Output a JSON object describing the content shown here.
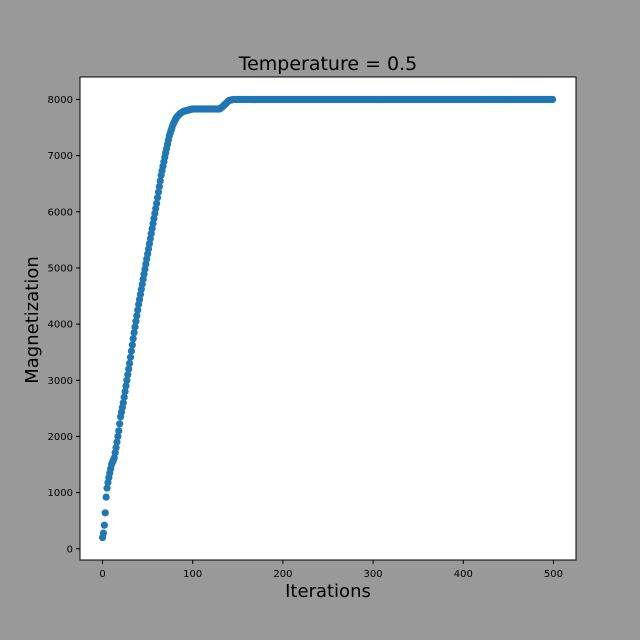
{
  "chart_data": {
    "type": "scatter",
    "title": "Temperature = 0.5",
    "xlabel": "Iterations",
    "ylabel": "Magnetization",
    "xlim": [
      -25,
      525
    ],
    "ylim": [
      -200,
      8400
    ],
    "xticks": [
      0,
      100,
      200,
      300,
      400,
      500
    ],
    "yticks": [
      0,
      1000,
      2000,
      3000,
      4000,
      5000,
      6000,
      7000,
      8000
    ],
    "grid": false,
    "marker_color": "#1f77b4",
    "series": [
      {
        "x_start": 0,
        "x_end": 499,
        "x_step": 1,
        "keypoints": [
          [
            0,
            200
          ],
          [
            1,
            280
          ],
          [
            2,
            420
          ],
          [
            3,
            640
          ],
          [
            4,
            920
          ],
          [
            5,
            1080
          ],
          [
            6,
            1180
          ],
          [
            8,
            1350
          ],
          [
            10,
            1500
          ],
          [
            13,
            1620
          ],
          [
            15,
            1800
          ],
          [
            18,
            2100
          ],
          [
            20,
            2350
          ],
          [
            23,
            2600
          ],
          [
            26,
            2900
          ],
          [
            30,
            3300
          ],
          [
            35,
            3850
          ],
          [
            40,
            4350
          ],
          [
            45,
            4800
          ],
          [
            50,
            5250
          ],
          [
            55,
            5700
          ],
          [
            60,
            6150
          ],
          [
            65,
            6650
          ],
          [
            70,
            7050
          ],
          [
            74,
            7350
          ],
          [
            78,
            7550
          ],
          [
            82,
            7680
          ],
          [
            86,
            7750
          ],
          [
            90,
            7790
          ],
          [
            95,
            7810
          ],
          [
            100,
            7830
          ],
          [
            130,
            7830
          ],
          [
            135,
            7900
          ],
          [
            140,
            7980
          ],
          [
            145,
            8000
          ],
          [
            499,
            8000
          ]
        ]
      }
    ]
  },
  "colors": {
    "figure_background": "#999999",
    "axes_background": "#ffffff",
    "marker": "#1f77b4"
  }
}
